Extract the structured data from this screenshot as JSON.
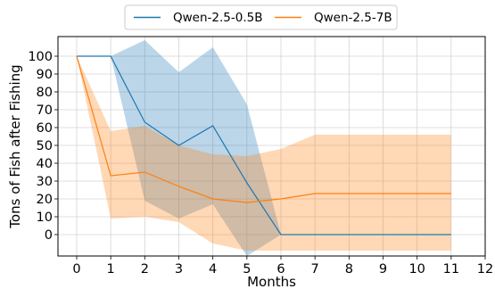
{
  "chart_data": {
    "type": "line",
    "title": "",
    "xlabel": "Months",
    "ylabel": "Tons of Fish after Fishing",
    "xlim": [
      -0.55,
      12
    ],
    "ylim": [
      -12,
      111
    ],
    "x_ticks": [
      0,
      1,
      2,
      3,
      4,
      5,
      6,
      7,
      8,
      9,
      10,
      11,
      12
    ],
    "y_ticks": [
      0,
      10,
      20,
      30,
      40,
      50,
      60,
      70,
      80,
      90,
      100
    ],
    "grid": true,
    "legend_position": "top-center",
    "series": [
      {
        "name": "Qwen-2.5-0.5B",
        "color": "#1f77b4",
        "x": [
          0,
          1,
          2,
          3,
          4,
          5,
          6,
          7,
          8,
          9,
          10,
          11
        ],
        "y": [
          100,
          100,
          63,
          50,
          61,
          29,
          0,
          0,
          0,
          0,
          0,
          0
        ],
        "band_upper": [
          100,
          100,
          109,
          91,
          105,
          73,
          0,
          0,
          0,
          0,
          0,
          0
        ],
        "band_lower": [
          100,
          100,
          19,
          9,
          17,
          -12,
          0,
          0,
          0,
          0,
          0,
          0
        ]
      },
      {
        "name": "Qwen-2.5-7B",
        "color": "#ff7f0e",
        "x": [
          0,
          1,
          2,
          3,
          4,
          5,
          6,
          7,
          8,
          9,
          10,
          11
        ],
        "y": [
          100,
          33,
          35,
          27,
          20,
          18,
          20,
          23,
          23,
          23,
          23,
          23
        ],
        "band_upper": [
          100,
          58,
          61,
          50,
          45,
          44,
          48,
          56,
          56,
          56,
          56,
          56
        ],
        "band_lower": [
          100,
          9,
          10,
          7,
          -5,
          -9,
          -9,
          -9,
          -9,
          -9,
          -9,
          -9
        ]
      }
    ]
  }
}
